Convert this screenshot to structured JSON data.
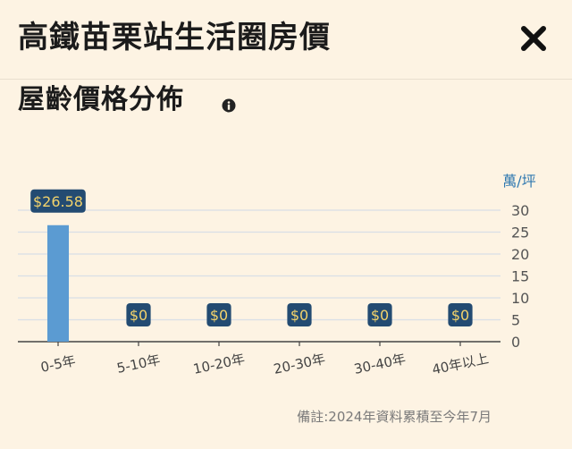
{
  "header": {
    "title": "高鐵苗栗站生活圈房價",
    "close_icon": "close-icon"
  },
  "section": {
    "title": "屋齡價格分佈",
    "info_icon": "info-icon"
  },
  "chart_data": {
    "type": "bar",
    "categories": [
      "0-5年",
      "5-10年",
      "10-20年",
      "20-30年",
      "30-40年",
      "40年以上"
    ],
    "values": [
      26.58,
      0,
      0,
      0,
      0,
      0
    ],
    "value_labels": [
      "$26.58",
      "$0",
      "$0",
      "$0",
      "$0",
      "$0"
    ],
    "unit": "萬/坪",
    "ylim": [
      0,
      30
    ],
    "yticks": [
      0,
      5,
      10,
      15,
      20,
      25,
      30
    ],
    "grid": true,
    "y_axis_side": "right",
    "colors": {
      "bar": "#5b9bd2",
      "label_bg": "#234b72",
      "label_text": "#f3d36b",
      "unit": "#2f78b0"
    }
  },
  "note": "備註:2024年資料累積至今年7月"
}
